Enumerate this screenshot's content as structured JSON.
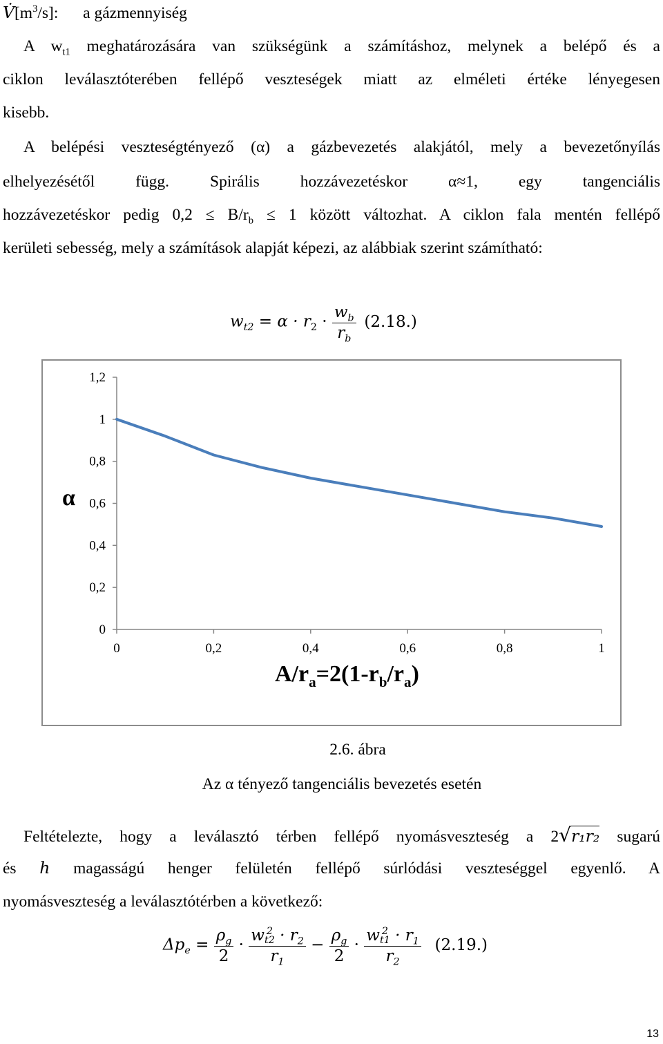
{
  "para1": {
    "symbol": "V̇",
    "unit_prefix": "[m",
    "unit_exp": "3",
    "unit_suffix": "/s]:",
    "desc": "a gázmennyiség"
  },
  "para2": {
    "l1_a": "A w",
    "l1_sub": "t1",
    "l1_b": " meghatározására van szükségünk a számításhoz, melynek a belépő és a",
    "l2": "ciklon leválasztóterében fellépő veszteségek miatt az elméleti értéke lényegesen",
    "l3": "kisebb."
  },
  "para3": {
    "l1": "A belépési veszteségtényező (α) a gázbevezetés alakjától, mely a bevezetőnyílás",
    "l2": "elhelyezésétől függ. Spirális hozzávezetéskor α≈1, egy tangenciális",
    "l3_a": "hozzávezetéskor pedig 0,2 ≤ B/r",
    "l3_sub": "b",
    "l3_b": " ≤ 1 között változhat. A ciklon fala mentén fellépő",
    "l4": "kerületi sebesség, mely a számítások alapját képezi, az alábbiak szerint számítható:"
  },
  "eq1": {
    "lhs": "w",
    "lhs_sub": "t2",
    "op": " = α · r",
    "r_sub": "2",
    "dot": " · ",
    "num": "w",
    "num_sub": "b",
    "den": "r",
    "den_sub": "b",
    "label": "(2.18.)"
  },
  "chart_data": {
    "type": "line",
    "ylabel": "α",
    "xlabel_parts": [
      "A/r",
      "a",
      "=2(1-r",
      "b",
      "/r",
      "a",
      ")"
    ],
    "x_ticks": [
      "0",
      "0,2",
      "0,4",
      "0,6",
      "0,8",
      "1"
    ],
    "y_ticks": [
      "0",
      "0,2",
      "0,4",
      "0,6",
      "0,8",
      "1",
      "1,2"
    ],
    "xlim": [
      0,
      1
    ],
    "ylim": [
      0,
      1.2
    ],
    "grid": false,
    "line_color": "#4a7ebb",
    "series": [
      {
        "x": [
          0,
          0.1,
          0.2,
          0.3,
          0.4,
          0.5,
          0.6,
          0.7,
          0.8,
          0.9,
          1.0
        ],
        "values": [
          1.0,
          0.92,
          0.83,
          0.77,
          0.72,
          0.68,
          0.64,
          0.6,
          0.56,
          0.53,
          0.49
        ]
      }
    ]
  },
  "figure": {
    "number": "2.6. ábra",
    "title": "Az α tényező tangenciális bevezetés esetén"
  },
  "para4": {
    "l1_a": "Feltételezte, hogy a leválasztó térben fellépő nyomásveszteség a 2",
    "l1_rad": "r₁r₂",
    "l1_b": " sugarú",
    "l2_a": "és ",
    "l2_h": "h",
    "l2_b": " magasságú henger felületén fellépő súrlódási veszteséggel egyenlő. A",
    "l3": "nyomásveszteség a leválasztótérben a következő:"
  },
  "eq2": {
    "lhs": "Δp",
    "lhs_sub": "e",
    "eq": " = ",
    "f1_num": "ρ",
    "f1_num_sub": "g",
    "f1_den": "2",
    "f2_num_w": "w",
    "f2_num_sup": "2",
    "f2_num_sub": "t2",
    "f2_num_r": " · r",
    "f2_num_rsub": "2",
    "f2_den": "r",
    "f2_den_sub": "1",
    "minus": " − ",
    "f3_num": "ρ",
    "f3_num_sub": "g",
    "f3_den": "2",
    "f4_num_w": "w",
    "f4_num_sup": "2",
    "f4_num_sub": "t1",
    "f4_num_r": " · r",
    "f4_num_rsub": "1",
    "f4_den": "r",
    "f4_den_sub": "2",
    "label": "(2.19.)"
  },
  "page_number": "13"
}
